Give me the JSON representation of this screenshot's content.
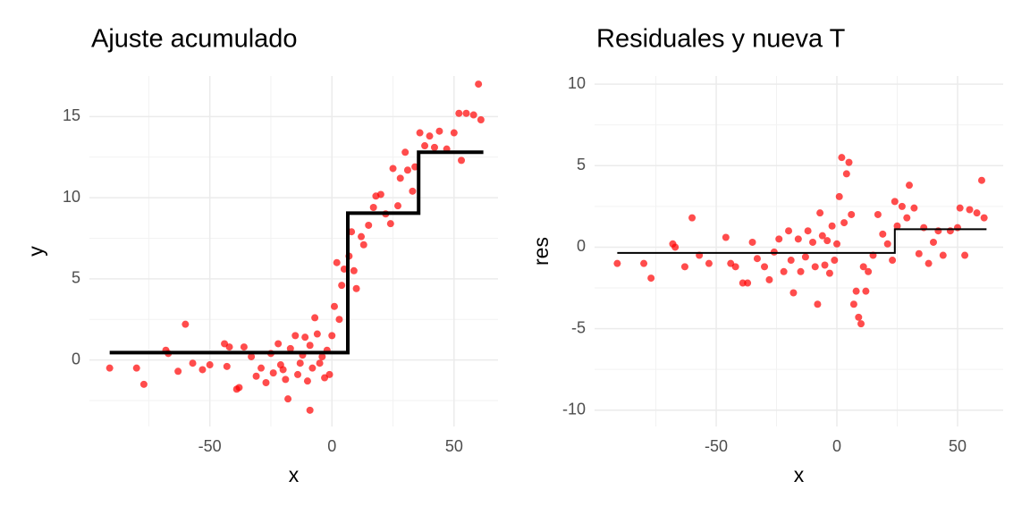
{
  "chart_data": [
    {
      "type": "scatter",
      "title": "Ajuste acumulado",
      "x_label": "x",
      "y_label": "y",
      "xlim": [
        -99.3,
        68
      ],
      "ylim": [
        -4.1,
        17.5
      ],
      "xticks": [
        -50,
        0,
        50
      ],
      "yticks": [
        0,
        5,
        10,
        15
      ],
      "x_minor_ticks": [
        -75,
        -25,
        25
      ],
      "y_minor_ticks": [
        -2.5,
        2.5,
        7.5,
        12.5
      ],
      "grid": true,
      "points": {
        "color": "#ff0000",
        "x": [
          -91,
          -80,
          -77,
          -68,
          -67,
          -63,
          -60,
          -57,
          -53,
          -50,
          -44,
          -43,
          -42,
          -39,
          -38,
          -36,
          -33,
          -31,
          -29,
          -27,
          -25,
          -24,
          -22,
          -21,
          -20,
          -19,
          -18,
          -17,
          -15,
          -14,
          -13,
          -12,
          -11,
          -10,
          -9,
          -9,
          -8,
          -7,
          -6,
          -5,
          -4,
          -3,
          -2,
          -1,
          0,
          1,
          2,
          3,
          4,
          5,
          7,
          8,
          9,
          10,
          12,
          13,
          15,
          17,
          18,
          20,
          22,
          24,
          25,
          27,
          28,
          30,
          31,
          33,
          34,
          36,
          38,
          40,
          42,
          44,
          47,
          50,
          52,
          53,
          55,
          58,
          60,
          61
        ],
        "y": [
          -0.5,
          -0.5,
          -1.5,
          0.6,
          0.4,
          -0.7,
          2.2,
          -0.2,
          -0.6,
          -0.3,
          1.0,
          -0.4,
          0.8,
          -1.8,
          -1.7,
          0.8,
          0.2,
          -1.0,
          -0.5,
          -1.4,
          0.4,
          -0.8,
          1.0,
          -0.3,
          -0.6,
          -1.2,
          -2.4,
          0.7,
          1.5,
          -0.9,
          -0.2,
          0.3,
          1.4,
          -1.3,
          0.9,
          -3.1,
          -0.5,
          2.6,
          1.6,
          -0.2,
          0.2,
          -1.1,
          0.6,
          -0.9,
          1.5,
          3.3,
          6.0,
          2.5,
          4.6,
          5.6,
          6.4,
          7.9,
          5.5,
          4.4,
          7.6,
          7.1,
          8.3,
          9.4,
          10.1,
          10.2,
          9.0,
          8.4,
          11.8,
          9.5,
          11.2,
          12.8,
          11.7,
          10.4,
          11.9,
          14.0,
          13.2,
          13.8,
          13.1,
          14.1,
          13.0,
          14.0,
          15.2,
          12.3,
          15.2,
          15.1,
          17.0,
          14.8
        ]
      },
      "step_line": {
        "color": "#000000",
        "x": [
          -91,
          6.5,
          6.5,
          35.5,
          35.5,
          62
        ],
        "y": [
          0.45,
          0.45,
          9.05,
          9.05,
          12.8,
          12.8
        ]
      }
    },
    {
      "type": "scatter",
      "title": "Residuales y nueva T",
      "x_label": "x",
      "y_label": "res",
      "xlim": [
        -100.4,
        68.9
      ],
      "ylim": [
        -11,
        10.5
      ],
      "xticks": [
        -50,
        0,
        50
      ],
      "yticks": [
        -10,
        -5,
        0,
        5,
        10
      ],
      "x_minor_ticks": [
        -75,
        -25,
        25
      ],
      "y_minor_ticks": [
        -7.5,
        -2.5,
        2.5,
        7.5
      ],
      "grid": true,
      "points": {
        "color": "#ff0000",
        "x": [
          -91,
          -80,
          -77,
          -68,
          -67,
          -63,
          -60,
          -57,
          -53,
          -46,
          -44,
          -42,
          -39,
          -37,
          -35,
          -33,
          -30,
          -28,
          -26,
          -24,
          -22,
          -20,
          -19,
          -18,
          -16,
          -15,
          -13,
          -12,
          -10,
          -9,
          -8,
          -7,
          -6,
          -5,
          -4,
          -3,
          -2,
          -1,
          0,
          1,
          2,
          3,
          4,
          5,
          6,
          7,
          8,
          9,
          10,
          11,
          12,
          13,
          15,
          17,
          19,
          21,
          23,
          24,
          25,
          27,
          29,
          30,
          32,
          34,
          36,
          38,
          40,
          42,
          44,
          47,
          50,
          51,
          53,
          55,
          58,
          60,
          61
        ],
        "y": [
          -1.0,
          -1.0,
          -1.9,
          0.2,
          0.0,
          -1.2,
          1.8,
          -0.5,
          -1.0,
          0.6,
          -1.0,
          -1.2,
          -2.2,
          -2.2,
          0.3,
          -0.7,
          -1.2,
          -2.0,
          -0.3,
          0.5,
          -1.5,
          1.0,
          -0.8,
          -2.8,
          0.5,
          -1.5,
          -0.6,
          1.0,
          0.3,
          -1.2,
          -3.5,
          2.1,
          0.7,
          -1.1,
          0.4,
          -1.6,
          1.3,
          -0.8,
          0.2,
          3.1,
          5.5,
          1.5,
          4.5,
          5.2,
          2.0,
          -3.5,
          -2.7,
          -4.3,
          -4.7,
          -1.2,
          -2.7,
          -1.5,
          -0.5,
          2.0,
          0.8,
          0.2,
          -0.8,
          2.8,
          1.3,
          2.5,
          1.8,
          3.8,
          2.4,
          -0.4,
          1.2,
          -1.0,
          0.3,
          1.0,
          -0.5,
          1.0,
          1.2,
          2.4,
          -0.5,
          2.3,
          2.1,
          4.1,
          1.8
        ]
      },
      "step_line": {
        "color": "#000000",
        "x": [
          -91,
          24,
          24,
          62
        ],
        "y": [
          -0.35,
          -0.35,
          1.1,
          1.1
        ]
      }
    }
  ]
}
